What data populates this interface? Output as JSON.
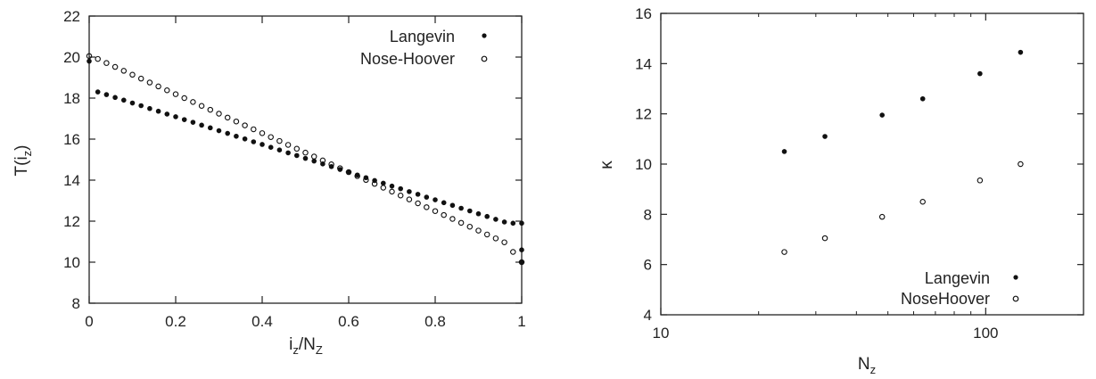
{
  "chart_data": [
    {
      "type": "scatter",
      "xlabel": {
        "base": "i",
        "sub": "z",
        "slash": "/",
        "base2": "N",
        "sub2": "Z"
      },
      "ylabel": {
        "base": "T(i",
        "sub": "z",
        "close": ")"
      },
      "xlim": [
        0,
        1
      ],
      "ylim": [
        8,
        22
      ],
      "xticks": [
        0,
        0.2,
        0.4,
        0.6,
        0.8,
        1
      ],
      "xtick_labels": [
        "0",
        "0.2",
        "0.4",
        "0.6",
        "0.8",
        "1"
      ],
      "yticks": [
        8,
        10,
        12,
        14,
        16,
        18,
        20,
        22
      ],
      "ytick_labels": [
        "8",
        "10",
        "12",
        "14",
        "16",
        "18",
        "20",
        "22"
      ],
      "legend_position": "top-right",
      "series": [
        {
          "name": "Langevin",
          "marker": "filled",
          "x": [
            0.0,
            0.02,
            0.04,
            0.06,
            0.08,
            0.1,
            0.12,
            0.14,
            0.16,
            0.18,
            0.2,
            0.22,
            0.24,
            0.26,
            0.28,
            0.3,
            0.32,
            0.34,
            0.36,
            0.38,
            0.4,
            0.42,
            0.44,
            0.46,
            0.48,
            0.5,
            0.52,
            0.54,
            0.56,
            0.58,
            0.6,
            0.62,
            0.64,
            0.66,
            0.68,
            0.7,
            0.72,
            0.74,
            0.76,
            0.78,
            0.8,
            0.82,
            0.84,
            0.86,
            0.88,
            0.9,
            0.92,
            0.94,
            0.96,
            0.98,
            1.0,
            1.0,
            1.0
          ],
          "y": [
            19.8,
            18.3,
            18.17,
            18.03,
            17.9,
            17.76,
            17.63,
            17.49,
            17.36,
            17.22,
            17.09,
            16.95,
            16.82,
            16.68,
            16.55,
            16.41,
            16.28,
            16.14,
            16.01,
            15.87,
            15.74,
            15.6,
            15.47,
            15.33,
            15.2,
            15.06,
            14.93,
            14.79,
            14.66,
            14.52,
            14.39,
            14.25,
            14.12,
            13.98,
            13.85,
            13.71,
            13.58,
            13.44,
            13.31,
            13.17,
            13.04,
            12.9,
            12.77,
            12.63,
            12.5,
            12.36,
            12.23,
            12.09,
            11.96,
            11.9,
            11.9,
            10.6,
            10.0
          ]
        },
        {
          "name": "Nose-Hoover",
          "marker": "open",
          "x": [
            0.0,
            0.02,
            0.04,
            0.06,
            0.08,
            0.1,
            0.12,
            0.14,
            0.16,
            0.18,
            0.2,
            0.22,
            0.24,
            0.26,
            0.28,
            0.3,
            0.32,
            0.34,
            0.36,
            0.38,
            0.4,
            0.42,
            0.44,
            0.46,
            0.48,
            0.5,
            0.52,
            0.54,
            0.56,
            0.58,
            0.6,
            0.62,
            0.64,
            0.66,
            0.68,
            0.7,
            0.72,
            0.74,
            0.76,
            0.78,
            0.8,
            0.82,
            0.84,
            0.86,
            0.88,
            0.9,
            0.92,
            0.94,
            0.96,
            0.98,
            1.0
          ],
          "y": [
            20.05,
            19.91,
            19.71,
            19.52,
            19.33,
            19.14,
            18.95,
            18.76,
            18.57,
            18.38,
            18.19,
            18.0,
            17.81,
            17.62,
            17.43,
            17.24,
            17.05,
            16.86,
            16.67,
            16.48,
            16.29,
            16.1,
            15.91,
            15.72,
            15.53,
            15.34,
            15.15,
            14.96,
            14.77,
            14.58,
            14.39,
            14.2,
            14.01,
            13.82,
            13.63,
            13.44,
            13.25,
            13.06,
            12.87,
            12.68,
            12.49,
            12.3,
            12.11,
            11.92,
            11.73,
            11.54,
            11.35,
            11.16,
            10.97,
            10.5,
            10.0
          ]
        }
      ]
    },
    {
      "type": "scatter",
      "xscale": "log",
      "xlabel": {
        "base": "N",
        "sub": "z"
      },
      "ylabel": {
        "base": "κ"
      },
      "xlim": [
        10,
        200
      ],
      "ylim": [
        4,
        16
      ],
      "xticks": [
        10,
        100
      ],
      "xtick_labels": [
        "10",
        "100"
      ],
      "yticks": [
        4,
        6,
        8,
        10,
        12,
        14,
        16
      ],
      "ytick_labels": [
        "4",
        "6",
        "8",
        "10",
        "12",
        "14",
        "16"
      ],
      "legend_position": "bottom-right",
      "series": [
        {
          "name": "Langevin",
          "marker": "filled",
          "x": [
            24,
            32,
            48,
            64,
            96,
            128
          ],
          "y": [
            10.5,
            11.1,
            11.95,
            12.6,
            13.6,
            14.45
          ]
        },
        {
          "name": "NoseHoover",
          "marker": "open",
          "x": [
            24,
            32,
            48,
            64,
            96,
            128
          ],
          "y": [
            6.5,
            7.05,
            7.9,
            8.5,
            9.35,
            10.0
          ]
        }
      ]
    }
  ]
}
